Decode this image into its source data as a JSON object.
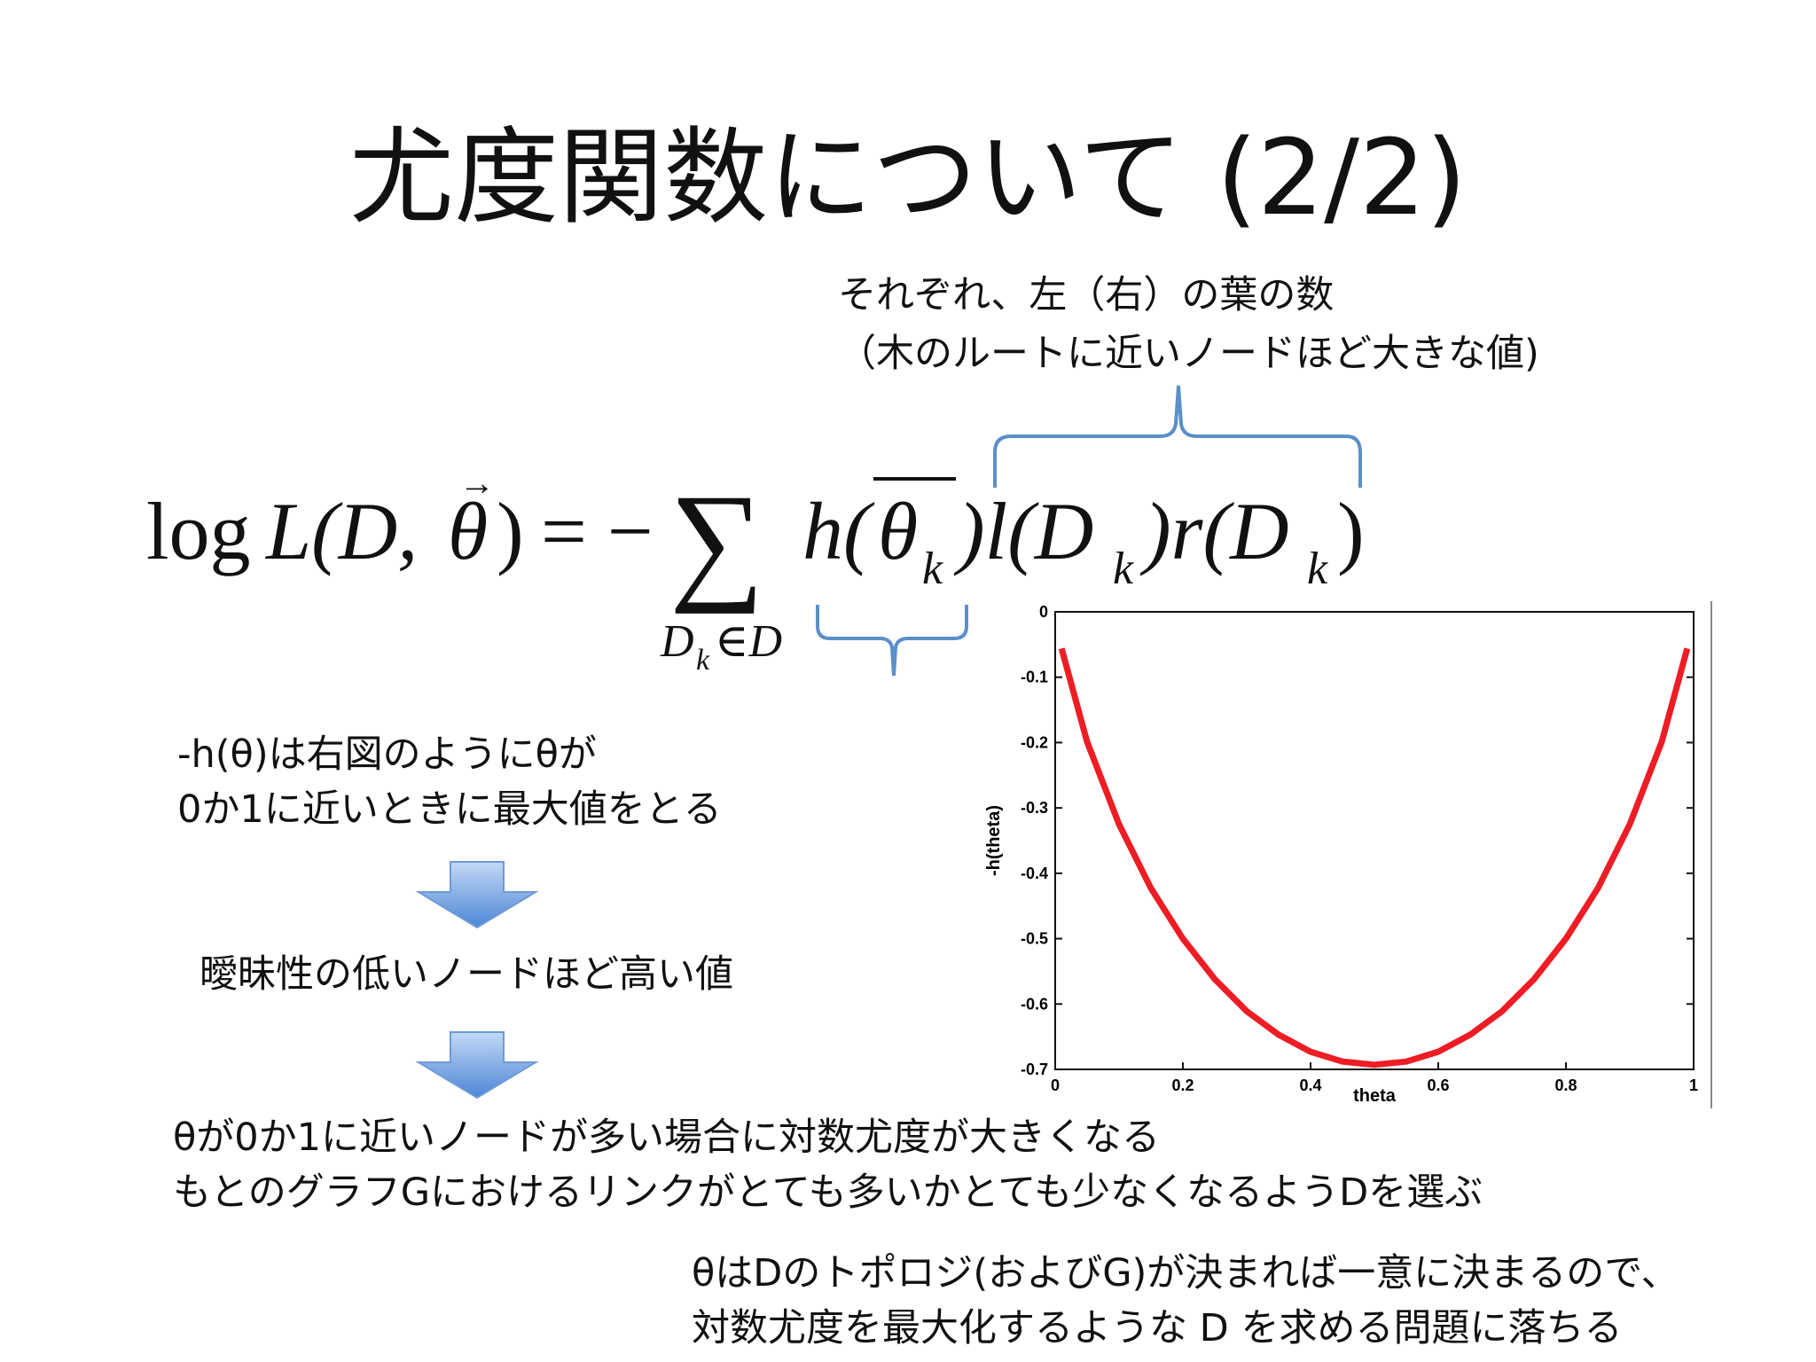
{
  "slide": {
    "title": "尤度関数について (2/2)"
  },
  "annotation": {
    "line1": "それぞれ、左（右）の葉の数",
    "line2": "（木のルートに近いノードほど大きな値)"
  },
  "formula": {
    "log": "log",
    "lhs": "L(D,",
    "theta": "θ",
    "close": ")",
    "equals": "= −",
    "sum": "∑",
    "sum_index": "D",
    "sum_index_sub": "k",
    "sum_index_rest": "∈D",
    "h": "h(",
    "k": "k",
    "l": ")l(D",
    "r": ")r(D",
    "end": ")"
  },
  "body": {
    "line1": "-h(θ)は右図のようにθが",
    "line2": "0か1に近いときに最大値をとる",
    "middle": "曖昧性の低いノードほど高い値",
    "conclusion1": "θが0か1に近いノードが多い場合に対数尤度が大きくなる",
    "conclusion2": "もとのグラフGにおけるリンクがとても多いかとても少なくなるようDを選ぶ",
    "final1": "θはDのトポロジ(およびG)が決まれば一意に決まるので、",
    "final2": "対数尤度を最大化するような D を求める問題に落ちる"
  },
  "colors": {
    "brace": "#5b8fc8",
    "curve": "#ee1c24",
    "arrow_top": "#c3d9f6",
    "arrow_bottom": "#4d86d6"
  },
  "chart_data": {
    "type": "line",
    "title": "",
    "xlabel": "theta",
    "ylabel": "-h(theta)",
    "xlim": [
      0,
      1
    ],
    "ylim": [
      -0.7,
      0
    ],
    "xticks": [
      "0",
      "0.2",
      "0.4",
      "0.6",
      "0.8",
      "1"
    ],
    "yticks": [
      "0",
      "-0.1",
      "-0.2",
      "-0.3",
      "-0.4",
      "-0.5",
      "-0.6",
      "-0.7"
    ],
    "series": [
      {
        "x": [
          0.01,
          0.05,
          0.1,
          0.15,
          0.2,
          0.25,
          0.3,
          0.35,
          0.4,
          0.45,
          0.5,
          0.55,
          0.6,
          0.65,
          0.7,
          0.75,
          0.8,
          0.85,
          0.9,
          0.95,
          0.99
        ],
        "values": [
          -0.056,
          -0.199,
          -0.325,
          -0.423,
          -0.5,
          -0.562,
          -0.611,
          -0.647,
          -0.673,
          -0.688,
          -0.693,
          -0.688,
          -0.673,
          -0.647,
          -0.611,
          -0.562,
          -0.5,
          -0.423,
          -0.325,
          -0.199,
          -0.056
        ]
      }
    ],
    "grid": false
  }
}
